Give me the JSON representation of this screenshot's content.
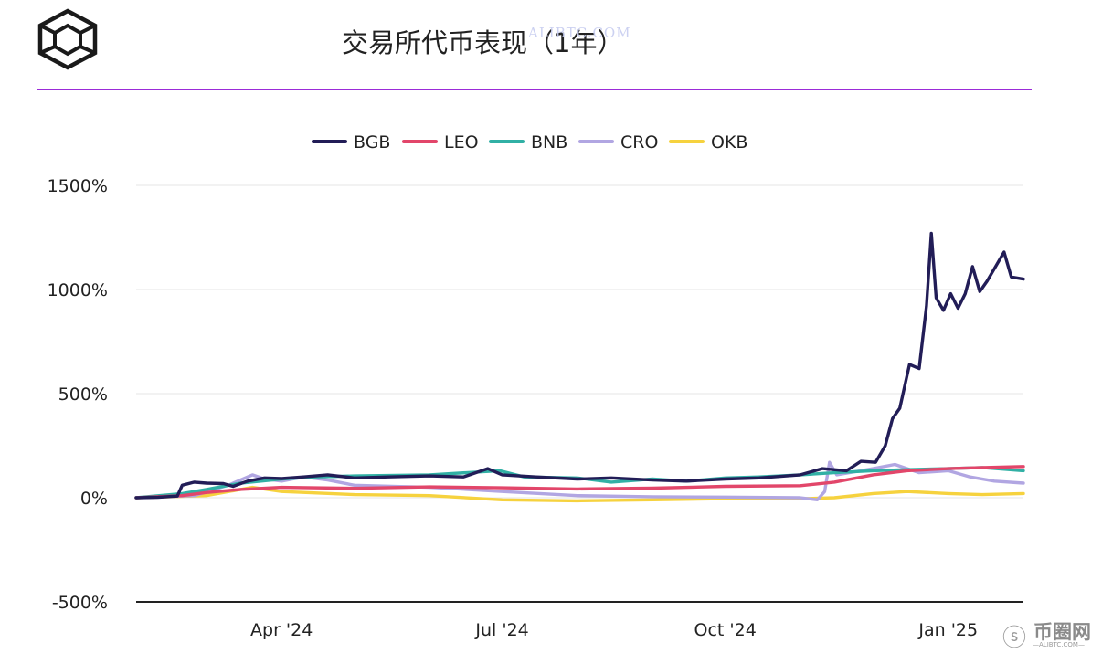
{
  "title": "交易所代币表现（1年）",
  "watermark_top": "ALIBTC.COM",
  "watermark_bottom": {
    "glyph": "ⓢ",
    "name": "币圈网",
    "sub": "—ALIBTC.COM—"
  },
  "colors": {
    "accent_rule": "#9b2bd8",
    "gridline": "#e6e6e6",
    "axis": "#222222"
  },
  "chart_data": {
    "type": "line",
    "title": "交易所代币表现（1年）",
    "xlabel": "",
    "ylabel": "",
    "x_range": [
      "2024-02-01",
      "2025-02-01"
    ],
    "ylim": [
      -500,
      1500
    ],
    "y_ticks": [
      1500,
      1000,
      500,
      0,
      -500
    ],
    "y_tick_labels": [
      "1500%",
      "1000%",
      "500%",
      "0%",
      "-500%"
    ],
    "x_ticks": [
      "2024-04-01",
      "2024-07-01",
      "2024-10-01",
      "2025-01-01"
    ],
    "x_tick_labels": [
      "Apr '24",
      "Jul '24",
      "Oct '24",
      "Jan '25"
    ],
    "grid": true,
    "legend_position": "top-center",
    "series": [
      {
        "name": "BGB",
        "color": "#221d57",
        "points": [
          [
            "2024-02-01",
            0
          ],
          [
            "2024-02-10",
            2
          ],
          [
            "2024-02-18",
            8
          ],
          [
            "2024-02-20",
            60
          ],
          [
            "2024-02-25",
            75
          ],
          [
            "2024-03-01",
            70
          ],
          [
            "2024-03-08",
            68
          ],
          [
            "2024-03-12",
            55
          ],
          [
            "2024-03-18",
            80
          ],
          [
            "2024-03-25",
            95
          ],
          [
            "2024-04-01",
            92
          ],
          [
            "2024-04-10",
            100
          ],
          [
            "2024-04-20",
            110
          ],
          [
            "2024-05-01",
            95
          ],
          [
            "2024-05-15",
            100
          ],
          [
            "2024-06-01",
            105
          ],
          [
            "2024-06-15",
            100
          ],
          [
            "2024-06-25",
            140
          ],
          [
            "2024-07-01",
            110
          ],
          [
            "2024-07-15",
            100
          ],
          [
            "2024-08-01",
            90
          ],
          [
            "2024-08-15",
            95
          ],
          [
            "2024-09-01",
            85
          ],
          [
            "2024-09-15",
            80
          ],
          [
            "2024-10-01",
            90
          ],
          [
            "2024-10-15",
            95
          ],
          [
            "2024-11-01",
            110
          ],
          [
            "2024-11-10",
            140
          ],
          [
            "2024-11-20",
            130
          ],
          [
            "2024-11-26",
            175
          ],
          [
            "2024-12-02",
            170
          ],
          [
            "2024-12-06",
            250
          ],
          [
            "2024-12-09",
            380
          ],
          [
            "2024-12-12",
            430
          ],
          [
            "2024-12-16",
            640
          ],
          [
            "2024-12-20",
            620
          ],
          [
            "2024-12-23",
            920
          ],
          [
            "2024-12-25",
            1270
          ],
          [
            "2024-12-27",
            960
          ],
          [
            "2024-12-30",
            900
          ],
          [
            "2025-01-02",
            980
          ],
          [
            "2025-01-05",
            910
          ],
          [
            "2025-01-08",
            980
          ],
          [
            "2025-01-11",
            1110
          ],
          [
            "2025-01-14",
            990
          ],
          [
            "2025-01-17",
            1040
          ],
          [
            "2025-01-20",
            1100
          ],
          [
            "2025-01-24",
            1180
          ],
          [
            "2025-01-27",
            1060
          ],
          [
            "2025-02-01",
            1050
          ]
        ]
      },
      {
        "name": "LEO",
        "color": "#e2466a",
        "points": [
          [
            "2024-02-01",
            0
          ],
          [
            "2024-02-20",
            10
          ],
          [
            "2024-03-01",
            25
          ],
          [
            "2024-03-15",
            40
          ],
          [
            "2024-04-01",
            50
          ],
          [
            "2024-05-01",
            45
          ],
          [
            "2024-06-01",
            52
          ],
          [
            "2024-07-01",
            48
          ],
          [
            "2024-08-01",
            42
          ],
          [
            "2024-09-01",
            46
          ],
          [
            "2024-10-01",
            55
          ],
          [
            "2024-11-01",
            58
          ],
          [
            "2024-11-15",
            75
          ],
          [
            "2024-12-01",
            110
          ],
          [
            "2024-12-15",
            130
          ],
          [
            "2025-01-01",
            140
          ],
          [
            "2025-01-15",
            145
          ],
          [
            "2025-02-01",
            150
          ]
        ]
      },
      {
        "name": "BNB",
        "color": "#31b0a5",
        "points": [
          [
            "2024-02-01",
            0
          ],
          [
            "2024-02-20",
            20
          ],
          [
            "2024-03-01",
            40
          ],
          [
            "2024-03-15",
            70
          ],
          [
            "2024-04-01",
            90
          ],
          [
            "2024-04-15",
            100
          ],
          [
            "2024-05-01",
            105
          ],
          [
            "2024-06-01",
            110
          ],
          [
            "2024-06-30",
            130
          ],
          [
            "2024-07-10",
            100
          ],
          [
            "2024-08-01",
            95
          ],
          [
            "2024-08-15",
            75
          ],
          [
            "2024-09-01",
            90
          ],
          [
            "2024-09-15",
            80
          ],
          [
            "2024-10-01",
            95
          ],
          [
            "2024-10-15",
            100
          ],
          [
            "2024-11-01",
            110
          ],
          [
            "2024-11-15",
            120
          ],
          [
            "2024-12-01",
            130
          ],
          [
            "2024-12-15",
            135
          ],
          [
            "2025-01-01",
            140
          ],
          [
            "2025-01-15",
            145
          ],
          [
            "2025-02-01",
            130
          ]
        ]
      },
      {
        "name": "CRO",
        "color": "#b1a6e2",
        "points": [
          [
            "2024-02-01",
            0
          ],
          [
            "2024-02-25",
            10
          ],
          [
            "2024-03-10",
            60
          ],
          [
            "2024-03-20",
            110
          ],
          [
            "2024-03-25",
            90
          ],
          [
            "2024-04-01",
            80
          ],
          [
            "2024-04-10",
            100
          ],
          [
            "2024-04-20",
            85
          ],
          [
            "2024-05-01",
            60
          ],
          [
            "2024-06-01",
            50
          ],
          [
            "2024-07-01",
            30
          ],
          [
            "2024-08-01",
            10
          ],
          [
            "2024-09-01",
            5
          ],
          [
            "2024-10-01",
            3
          ],
          [
            "2024-11-01",
            0
          ],
          [
            "2024-11-08",
            -10
          ],
          [
            "2024-11-11",
            30
          ],
          [
            "2024-11-13",
            170
          ],
          [
            "2024-11-16",
            110
          ],
          [
            "2024-12-01",
            140
          ],
          [
            "2024-12-10",
            160
          ],
          [
            "2024-12-20",
            120
          ],
          [
            "2025-01-01",
            130
          ],
          [
            "2025-01-10",
            100
          ],
          [
            "2025-01-20",
            80
          ],
          [
            "2025-02-01",
            70
          ]
        ]
      },
      {
        "name": "OKB",
        "color": "#f6d23e",
        "points": [
          [
            "2024-02-01",
            0
          ],
          [
            "2024-03-01",
            10
          ],
          [
            "2024-03-20",
            50
          ],
          [
            "2024-04-01",
            30
          ],
          [
            "2024-05-01",
            15
          ],
          [
            "2024-06-01",
            10
          ],
          [
            "2024-07-01",
            -10
          ],
          [
            "2024-08-01",
            -15
          ],
          [
            "2024-09-01",
            -10
          ],
          [
            "2024-10-01",
            -5
          ],
          [
            "2024-11-01",
            -5
          ],
          [
            "2024-11-15",
            0
          ],
          [
            "2024-12-01",
            20
          ],
          [
            "2024-12-15",
            30
          ],
          [
            "2025-01-01",
            20
          ],
          [
            "2025-01-15",
            15
          ],
          [
            "2025-02-01",
            20
          ]
        ]
      }
    ]
  }
}
